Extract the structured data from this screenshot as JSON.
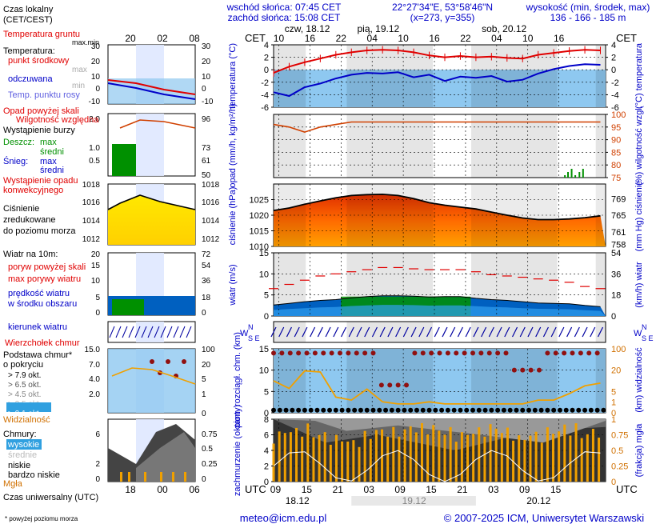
{
  "header": {
    "sunrise": "wschód słońca: 07:45 CET",
    "sunset": "zachód słońca: 15:08 CET",
    "coords": "22°27'34\"E, 53°58'46\"N",
    "grid": "(x=273, y=355)",
    "elev_label": "wysokość (min, środek, max)",
    "elev_values": "136 - 166 - 185 m",
    "cet": "CET",
    "utc": "UTC"
  },
  "day_labels": [
    "czw, 18.12",
    "pią, 19.12",
    "sob, 20.12"
  ],
  "cet_ticks": [
    "10",
    "16",
    "22",
    "04",
    "10",
    "16",
    "22",
    "04",
    "10",
    "16"
  ],
  "utc_ticks": [
    "09",
    "15",
    "21",
    "03",
    "09",
    "15",
    "21",
    "03",
    "09",
    "15"
  ],
  "utc_dates": [
    "18.12",
    "19.12",
    "20.12"
  ],
  "legend": {
    "time_local": "Czas lokalny (CET/CEST)",
    "time_top": [
      "20",
      "02",
      "08"
    ],
    "time_bottom": [
      "18",
      "00",
      "06"
    ],
    "time_utc": "Czas uniwersalny (UTC)",
    "temp_ground": "Temperatura gruntu",
    "maxmin": "max.min",
    "temp_title": "Temperatura:",
    "temp_mid": "punkt środkowy",
    "max": "max",
    "min": "min",
    "feels": "odczuwana",
    "dewpoint": "Temp. punktu rosy",
    "precip_over": "Opad powyżej skali",
    "humidity": "Wilgotność względna",
    "storm": "Wystąpienie burzy",
    "rain": "Deszcz:",
    "snow": "Śnieg:",
    "rain_max": "max",
    "rain_avg": "średni",
    "snow_max": "max",
    "snow_avg": "średni",
    "convective": "Wystąpienie opadu konwekcyjnego",
    "pressure": "Ciśnienie zredukowane do poziomu morza",
    "wind_title": "Wiatr na 10m:",
    "gust_over": "poryw powyżej skali",
    "gust_max": "max porywy wiatru",
    "wind_speed": "prędkość wiatru w środku obszaru",
    "wind_dir": "kierunek wiatru",
    "cloud_top": "Wierzchołek chmur",
    "cloud_base": "Podstawa chmur* o pokryciu",
    "okt": [
      "> 7.9 okt.",
      "> 6.5 okt.",
      "> 4.5 okt.",
      "> 2.5 okt.",
      "> 0.1 okt."
    ],
    "visibility": "Widzialność",
    "clouds": "Chmury:",
    "cl_high": "wysokie",
    "cl_mid": "średnie",
    "cl_low": "niskie",
    "cl_vlow": "bardzo niskie",
    "fog": "Mgła",
    "footnote": "* powyżej poziomu morza"
  },
  "panel_labels": {
    "temp_l": "temperatura (°C)",
    "temp_r": "(°C) temperatura",
    "precip_l": "opad (mm/h, kg/m²/h)",
    "precip_r": "(%) wilgotność wzgl.",
    "press_l": "ciśnienie (hPa)",
    "press_r": "(mm Hg) ciśnienie",
    "wind_l": "wiatr (m/s)",
    "wind_r": "(km/h) wiatr",
    "cloud_l": "pion. rozciągł. chm. (km)",
    "cloud_r": "(km) widzialność",
    "cover_l": "zachmurzenie (oktanty)",
    "cover_r": "(frakcja) mgła",
    "compass": "N W E S"
  },
  "footer": {
    "email": "meteo@icm.edu.pl",
    "copyright": "© 2007-2025 ICM, Uniwersytet Warszawski"
  },
  "colors": {
    "sky": "#8ec8f0",
    "night": "#d9d9d9",
    "red": "#e00000",
    "blue": "#0000c8",
    "pressure_fill": "#ff6000",
    "wind_green": "#009000",
    "gold": "#f0a000"
  },
  "chart_data": [
    {
      "type": "line",
      "title": "temperatura",
      "ylabel": "°C",
      "ylim": [
        -6,
        4
      ],
      "x_hours": [
        0,
        3,
        6,
        9,
        12,
        15,
        18,
        21,
        24,
        27,
        30,
        33,
        36,
        39,
        42,
        45,
        48,
        51,
        54,
        57,
        60,
        63
      ],
      "series": [
        {
          "name": "temperatura",
          "values": [
            -0.5,
            0.5,
            1.2,
            1.8,
            2.4,
            2.8,
            3.1,
            3.2,
            3.1,
            2.8,
            2.3,
            2.0,
            2.2,
            2.0,
            2.1,
            1.9,
            1.8,
            2.4,
            2.7,
            3.0,
            3.2,
            3.1
          ]
        },
        {
          "name": "odczuwana",
          "values": [
            -3.6,
            -4.2,
            -2.8,
            -2.2,
            -1.4,
            -0.8,
            -0.5,
            -0.6,
            -0.4,
            -1.2,
            -0.8,
            -1.8,
            -1.1,
            -1.3,
            -1.0,
            -1.9,
            -1.6,
            -0.6,
            0.1,
            0.6,
            0.9,
            0.8
          ]
        }
      ]
    },
    {
      "type": "line",
      "title": "wilgotność względna",
      "ylabel": "%",
      "ylim": [
        75,
        100
      ],
      "x_hours": [
        0,
        3,
        6,
        9,
        12,
        15,
        18,
        21,
        24,
        27,
        30,
        33,
        36,
        39,
        42,
        45,
        48,
        51,
        54,
        57,
        60,
        63
      ],
      "series": [
        {
          "name": "wilgotność",
          "values": [
            96,
            95,
            93,
            95,
            96,
            97,
            97,
            97,
            97,
            97,
            97,
            97,
            97,
            97,
            97,
            97,
            97,
            97,
            97,
            97,
            97,
            97
          ]
        }
      ]
    },
    {
      "type": "area",
      "title": "ciśnienie",
      "ylabel": "hPa",
      "ylim": [
        1010,
        1030
      ],
      "x_hours": [
        0,
        3,
        6,
        9,
        12,
        15,
        18,
        21,
        24,
        27,
        30,
        33,
        36,
        39,
        42,
        45,
        48,
        51,
        54,
        57,
        60,
        63
      ],
      "values": [
        1021.5,
        1022.3,
        1023.5,
        1024.6,
        1025.6,
        1026.3,
        1026.6,
        1026.7,
        1026.3,
        1025.3,
        1024.0,
        1023.2,
        1022.6,
        1022.0,
        1021.0,
        1020.0,
        1019.1,
        1018.6,
        1018.6,
        1018.8,
        1019.2,
        1019.8
      ]
    },
    {
      "type": "area",
      "title": "wiatr",
      "ylabel": "m/s",
      "ylim": [
        0,
        15
      ],
      "x_hours": [
        0,
        3,
        6,
        9,
        12,
        15,
        18,
        21,
        24,
        27,
        30,
        33,
        36,
        39,
        42,
        45,
        48,
        51,
        54,
        57,
        60,
        63
      ],
      "series": [
        {
          "name": "prędkość wiatru",
          "values": [
            2.6,
            3.0,
            3.4,
            3.7,
            3.9,
            4.3,
            4.6,
            4.8,
            4.8,
            4.7,
            4.5,
            4.6,
            4.6,
            4.2,
            3.9,
            3.7,
            3.4,
            3.1,
            3.0,
            2.9,
            2.5,
            2.2
          ]
        },
        {
          "name": "max porywy",
          "values": [
            6.5,
            7.5,
            8.5,
            9.5,
            10.0,
            10.5,
            11.0,
            11.5,
            11.5,
            11.2,
            11.0,
            11.0,
            11.0,
            10.5,
            9.8,
            9.5,
            9.2,
            8.8,
            8.5,
            8.0,
            7.0,
            6.5
          ]
        }
      ]
    },
    {
      "type": "line",
      "title": "widzialność",
      "ylabel": "km",
      "ylim": [
        0,
        100
      ],
      "x_hours": [
        0,
        3,
        6,
        9,
        12,
        15,
        18,
        21,
        24,
        27,
        30,
        33,
        36,
        39,
        42,
        45,
        48,
        51,
        54,
        57,
        60,
        63
      ],
      "values": [
        3.0,
        1.6,
        6.5,
        6.0,
        0.7,
        0.5,
        1.5,
        0.4,
        0.3,
        0.3,
        0.4,
        0.3,
        0.3,
        0.3,
        0.3,
        0.3,
        0.3,
        0.5,
        0.5,
        1.0,
        2.0,
        2.5
      ]
    },
    {
      "type": "bar",
      "title": "zachmurzenie",
      "ylabel": "oktanty",
      "ylim": [
        0,
        8
      ],
      "x_hours": [
        0,
        3,
        6,
        9,
        12,
        15,
        18,
        21,
        24,
        27,
        30,
        33,
        36,
        39,
        42,
        45,
        48,
        51,
        54,
        57,
        60,
        63
      ],
      "values": [
        6.5,
        7.0,
        7.5,
        6.5,
        6.0,
        5.5,
        6.5,
        7.0,
        7.0,
        7.5,
        7.5,
        7.0,
        6.5,
        7.0,
        7.5,
        7.0,
        6.0,
        6.5,
        7.0,
        7.5,
        6.5,
        7.0
      ]
    }
  ]
}
